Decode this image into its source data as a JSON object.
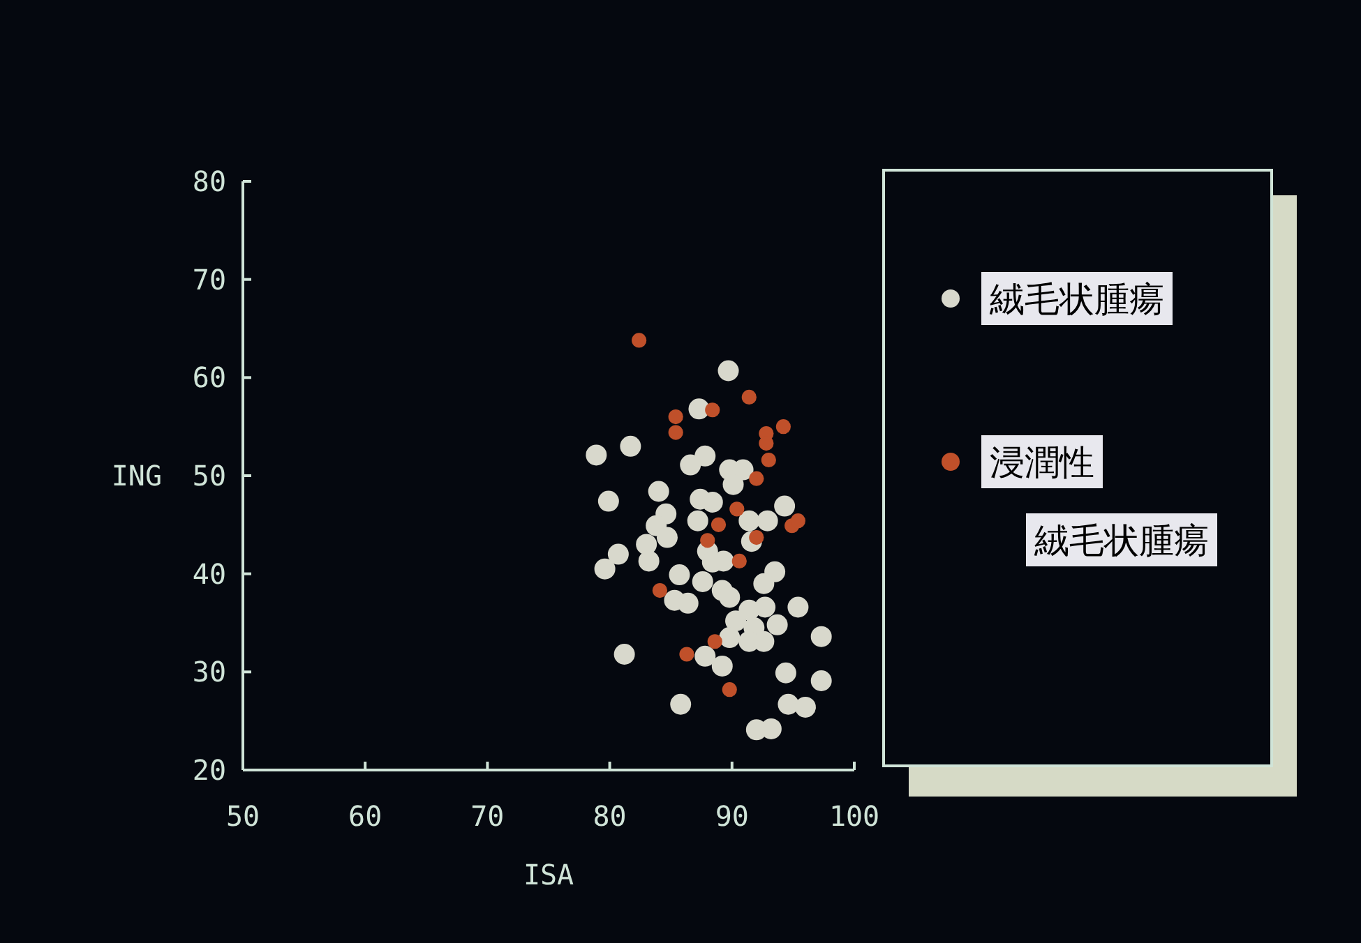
{
  "chart_data": {
    "type": "scatter",
    "xlabel": "ISA",
    "ylabel": "ING",
    "xlim": [
      50,
      100
    ],
    "ylim": [
      20,
      80
    ],
    "xticks": [
      50,
      60,
      70,
      80,
      90,
      100
    ],
    "yticks": [
      20,
      30,
      40,
      50,
      60,
      70,
      80
    ],
    "grid": false,
    "legend": "right",
    "marker": "circle",
    "series": [
      {
        "name": "絨毛状腫瘍",
        "color": "#d8d8cc",
        "x": [
          89.7,
          87.3,
          78.9,
          81.7,
          87.8,
          86.6,
          89.8,
          90.9,
          90.1,
          84.0,
          79.9,
          84.6,
          87.4,
          88.4,
          94.3,
          83.8,
          87.2,
          91.4,
          92.9,
          84.7,
          83.0,
          83.2,
          80.7,
          79.6,
          91.6,
          88.0,
          88.4,
          89.3,
          85.7,
          87.6,
          89.2,
          93.5,
          92.6,
          85.3,
          86.4,
          89.8,
          91.4,
          92.7,
          95.4,
          90.3,
          91.8,
          93.7,
          89.8,
          91.4,
          92.6,
          97.3,
          81.2,
          87.8,
          89.2,
          94.4,
          97.3,
          85.8,
          94.6,
          96.0,
          92.0,
          93.2
        ],
        "values": [
          60.7,
          56.8,
          52.1,
          53.0,
          52.0,
          51.1,
          50.6,
          50.6,
          49.1,
          48.4,
          47.4,
          46.1,
          47.6,
          47.3,
          46.9,
          44.9,
          45.4,
          45.4,
          45.4,
          43.7,
          43.0,
          41.3,
          42.0,
          40.5,
          43.3,
          42.3,
          41.2,
          41.3,
          39.9,
          39.2,
          38.3,
          40.2,
          39.0,
          37.3,
          37.0,
          37.6,
          36.3,
          36.6,
          36.6,
          35.2,
          34.5,
          34.8,
          33.5,
          33.1,
          33.1,
          33.6,
          31.8,
          31.6,
          30.6,
          29.9,
          29.1,
          26.7,
          26.7,
          26.4,
          24.1,
          24.2
        ]
      },
      {
        "name": "浸潤性絨毛状腫瘍",
        "color": "#c0502a",
        "x": [
          82.4,
          88.4,
          91.4,
          85.4,
          85.4,
          92.8,
          92.8,
          94.2,
          93.0,
          92.0,
          90.4,
          88.9,
          94.9,
          95.4,
          88.0,
          92.0,
          90.6,
          84.1,
          88.6,
          86.3,
          89.8
        ],
        "values": [
          63.8,
          56.7,
          58.0,
          56.0,
          54.4,
          54.3,
          53.3,
          55.0,
          51.6,
          49.7,
          46.6,
          45.0,
          44.9,
          45.4,
          43.4,
          43.7,
          41.3,
          38.3,
          33.1,
          31.8,
          28.2
        ]
      }
    ]
  }
}
